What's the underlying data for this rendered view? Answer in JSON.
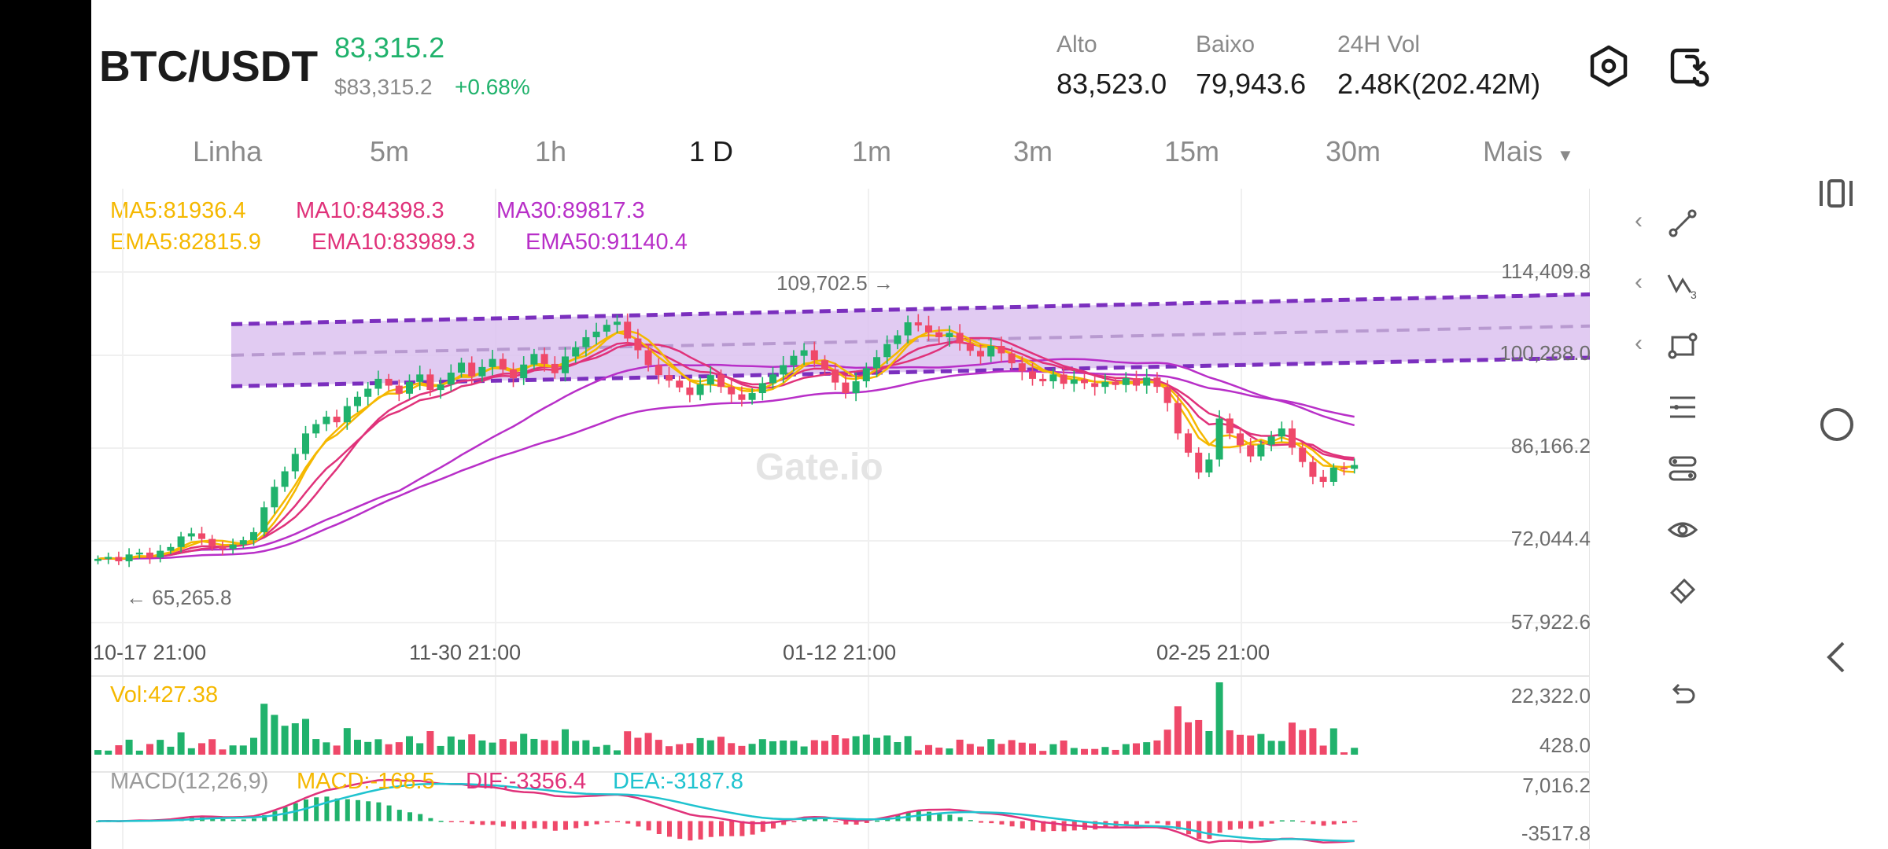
{
  "header": {
    "pair": "BTC/USDT",
    "last_price": "83,315.2",
    "usd_price": "$83,315.2",
    "change": "+0.68%",
    "high_label": "Alto",
    "high_value": "83,523.0",
    "low_label": "Baixo",
    "low_value": "79,943.6",
    "vol_label": "24H Vol",
    "vol_value": "2.48K(202.42M)"
  },
  "tabs": [
    "Linha",
    "5m",
    "1h",
    "1 D",
    "1m",
    "3m",
    "15m",
    "30m",
    "Mais"
  ],
  "active_tab": "1 D",
  "indicators": {
    "ma5": "MA5:81936.4",
    "ma10": "MA10:84398.3",
    "ma30": "MA30:89817.3",
    "ema5": "EMA5:82815.9",
    "ema10": "EMA10:83989.3",
    "ema50": "EMA50:91140.4",
    "vol": "Vol:427.38",
    "macd_name": "MACD(12,26,9)",
    "macd": "MACD:-168.5",
    "dif": "DIF:-3356.4",
    "dea": "DEA:-3187.8"
  },
  "price_axis": [
    "114,409.8",
    "100,288.0",
    "86,166.2",
    "72,044.4",
    "57,922.6"
  ],
  "volume_axis": [
    "22,322.0",
    "428.0"
  ],
  "macd_axis": [
    "7,016.2",
    "-3517.8"
  ],
  "time_axis": [
    "10-17 21:00",
    "11-30 21:00",
    "01-12 21:00",
    "02-25 21:00"
  ],
  "annotations": {
    "max_price": "109,702.5",
    "min_price": "65,265.8"
  },
  "watermark": "Gate.io",
  "colors": {
    "up": "#20b26c",
    "down": "#ef4869",
    "ma5": "#f5b800",
    "ma10": "#e0327a",
    "ma30": "#b82fc8",
    "channel": "#7b2fbe",
    "channel_fill": "#dcc2f0",
    "dif": "#e0327a",
    "dea": "#1fc3cf"
  },
  "chart_data": {
    "type": "candlestick",
    "symbol": "BTC/USDT",
    "interval": "1 D",
    "ylim": [
      57922.6,
      114409.8
    ],
    "x": [
      "10-17 21:00",
      "11-30 21:00",
      "01-12 21:00",
      "02-25 21:00"
    ],
    "max_marker": 109702.5,
    "min_marker": 65265.8,
    "closes": [
      68200,
      68500,
      67800,
      68900,
      69200,
      68400,
      69500,
      70100,
      71800,
      72300,
      71400,
      70200,
      69800,
      70500,
      71200,
      72500,
      76500,
      79800,
      82300,
      85100,
      88400,
      89900,
      91100,
      90200,
      92800,
      94300,
      95600,
      97200,
      96100,
      94800,
      96700,
      97900,
      95400,
      96300,
      98200,
      99800,
      97600,
      99100,
      100400,
      98700,
      97300,
      99500,
      101200,
      99600,
      98100,
      100800,
      102300,
      103900,
      104800,
      105900,
      106400,
      103700,
      101800,
      99400,
      97800,
      96900,
      95800,
      94600,
      96300,
      97800,
      95900,
      94700,
      93800,
      94900,
      96500,
      97900,
      99400,
      100900,
      101800,
      100200,
      98700,
      96600,
      94900,
      96800,
      98900,
      100700,
      102800,
      104200,
      106300,
      105800,
      104700,
      103900,
      104600,
      102900,
      101700,
      100800,
      102500,
      101300,
      99700,
      98400,
      97200,
      96800,
      97900,
      96400,
      97100,
      96500,
      95900,
      96700,
      96200,
      97300,
      96100,
      97400,
      95900,
      93300,
      88400,
      85300,
      82100,
      84200,
      90800,
      88400,
      86500,
      84700,
      86600,
      87900,
      89200,
      86100,
      83800,
      81400,
      80600,
      82900,
      82700,
      83315
    ]
  }
}
